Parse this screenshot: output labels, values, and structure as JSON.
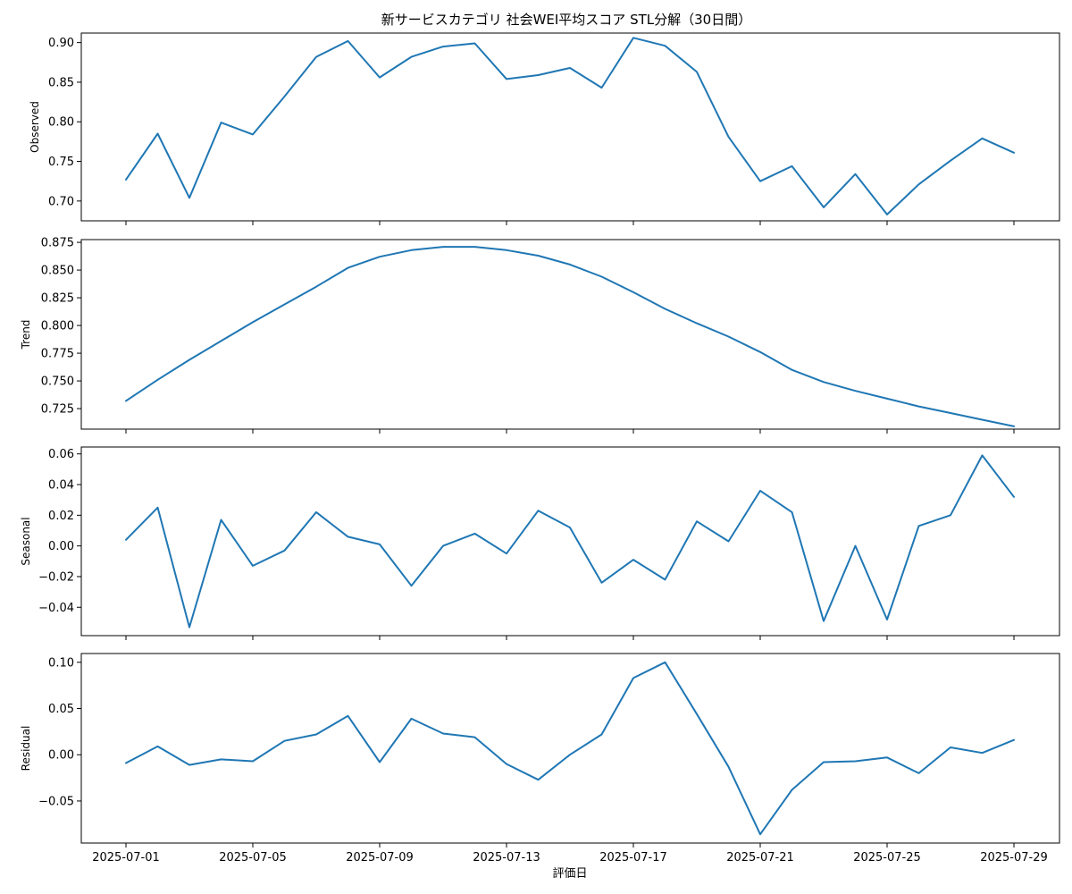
{
  "chart_data": {
    "type": "line",
    "title": "新サービスカテゴリ 社会WEI平均スコア STL分解（30日間）",
    "xlabel": "評価日",
    "line_color": "#1f77b4",
    "x": [
      "2025-07-01",
      "2025-07-02",
      "2025-07-03",
      "2025-07-04",
      "2025-07-05",
      "2025-07-06",
      "2025-07-07",
      "2025-07-08",
      "2025-07-09",
      "2025-07-10",
      "2025-07-11",
      "2025-07-12",
      "2025-07-13",
      "2025-07-14",
      "2025-07-15",
      "2025-07-16",
      "2025-07-17",
      "2025-07-18",
      "2025-07-19",
      "2025-07-20",
      "2025-07-21",
      "2025-07-22",
      "2025-07-23",
      "2025-07-24",
      "2025-07-25",
      "2025-07-26",
      "2025-07-27",
      "2025-07-28",
      "2025-07-29"
    ],
    "x_tick_labels": [
      "2025-07-01",
      "2025-07-05",
      "2025-07-09",
      "2025-07-13",
      "2025-07-17",
      "2025-07-21",
      "2025-07-25",
      "2025-07-29"
    ],
    "panels": [
      {
        "ylabel": "Observed",
        "ylim": [
          0.675,
          0.912
        ],
        "yticks": [
          0.7,
          0.75,
          0.8,
          0.85,
          0.9
        ],
        "ytick_labels": [
          "0.70",
          "0.75",
          "0.80",
          "0.85",
          "0.90"
        ],
        "values": [
          0.727,
          0.785,
          0.704,
          0.799,
          0.784,
          0.832,
          0.882,
          0.902,
          0.856,
          0.882,
          0.895,
          0.899,
          0.854,
          0.859,
          0.868,
          0.843,
          0.906,
          0.896,
          0.863,
          0.781,
          0.725,
          0.744,
          0.692,
          0.734,
          0.683,
          0.721,
          0.751,
          0.779,
          0.761
        ]
      },
      {
        "ylabel": "Trend",
        "ylim": [
          0.7065,
          0.8775
        ],
        "yticks": [
          0.725,
          0.75,
          0.775,
          0.8,
          0.825,
          0.85,
          0.875
        ],
        "ytick_labels": [
          "0.725",
          "0.750",
          "0.775",
          "0.800",
          "0.825",
          "0.850",
          "0.875"
        ],
        "values": [
          0.732,
          0.751,
          0.769,
          0.786,
          0.803,
          0.819,
          0.835,
          0.852,
          0.862,
          0.868,
          0.871,
          0.871,
          0.868,
          0.863,
          0.855,
          0.844,
          0.83,
          0.815,
          0.802,
          0.79,
          0.776,
          0.76,
          0.749,
          0.741,
          0.734,
          0.727,
          0.721,
          0.715,
          0.709
        ]
      },
      {
        "ylabel": "Seasonal",
        "ylim": [
          -0.0585,
          0.0645
        ],
        "yticks": [
          -0.04,
          -0.02,
          0.0,
          0.02,
          0.04,
          0.06
        ],
        "ytick_labels": [
          "−0.04",
          "−0.02",
          "0.00",
          "0.02",
          "0.04",
          "0.06"
        ],
        "values": [
          0.004,
          0.025,
          -0.053,
          0.017,
          -0.013,
          -0.003,
          0.022,
          0.006,
          0.001,
          -0.026,
          0.0,
          0.008,
          -0.005,
          0.023,
          0.012,
          -0.024,
          -0.009,
          -0.022,
          0.016,
          0.003,
          0.036,
          0.022,
          -0.049,
          0.0,
          -0.048,
          0.013,
          0.02,
          0.059,
          0.032
        ]
      },
      {
        "ylabel": "Residual",
        "ylim": [
          -0.0955,
          0.1095
        ],
        "yticks": [
          -0.05,
          0.0,
          0.05,
          0.1
        ],
        "ytick_labels": [
          "−0.05",
          "0.00",
          "0.05",
          "0.10"
        ],
        "values": [
          -0.009,
          0.009,
          -0.011,
          -0.005,
          -0.007,
          0.015,
          0.022,
          0.042,
          -0.008,
          0.039,
          0.023,
          0.019,
          -0.01,
          -0.027,
          0.0,
          0.022,
          0.083,
          0.1,
          0.044,
          -0.013,
          -0.086,
          -0.038,
          -0.008,
          -0.007,
          -0.003,
          -0.02,
          0.008,
          0.002,
          0.016
        ]
      }
    ]
  }
}
